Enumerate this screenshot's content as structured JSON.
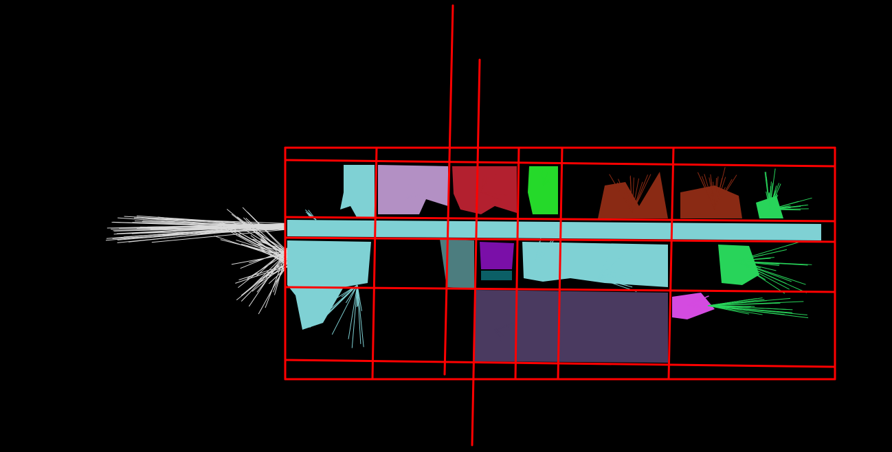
{
  "map": {
    "background": "#000000",
    "grid_color": "#ff0000",
    "scan_color": "#ffffff",
    "rooms": [
      {
        "id": "corridor",
        "color": "#7fd1d4"
      },
      {
        "id": "room-a",
        "color": "#b390c4"
      },
      {
        "id": "room-b",
        "color": "#b3202f"
      },
      {
        "id": "room-c",
        "color": "#25d92a"
      },
      {
        "id": "room-d",
        "color": "#8a2a14"
      },
      {
        "id": "room-e",
        "color": "#28d45a"
      },
      {
        "id": "room-f",
        "color": "#7a0fa8"
      },
      {
        "id": "room-g",
        "color": "#0b5f66"
      },
      {
        "id": "room-h",
        "color": "#4a3a60"
      },
      {
        "id": "room-i",
        "color": "#d44be0"
      }
    ]
  }
}
